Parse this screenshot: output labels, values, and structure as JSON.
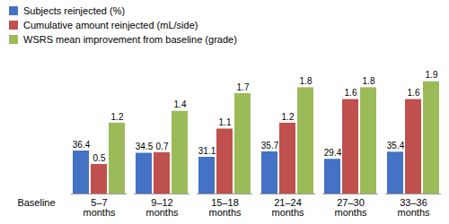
{
  "chart_data": {
    "type": "bar",
    "categories": [
      "Baseline",
      "5–7 months",
      "9–12 months",
      "15–18 months",
      "21–24 months",
      "27–30 months",
      "33–36 months"
    ],
    "series": [
      {
        "name": "Subjects reinjected (%)",
        "color": "#4472c4",
        "values": [
          null,
          36.4,
          34.5,
          31.1,
          35.7,
          29.4,
          35.4
        ]
      },
      {
        "name": "Cumulative amount reinjected (mL/side)",
        "color": "#c0504d",
        "axis": "y2",
        "values": [
          null,
          0.5,
          0.7,
          1.1,
          1.2,
          1.6,
          1.6
        ]
      },
      {
        "name": "WSRS mean improvement from baseline (grade)",
        "color": "#9bbb59",
        "axis": "y2",
        "values": [
          null,
          1.2,
          1.4,
          1.7,
          1.8,
          1.8,
          1.9
        ]
      }
    ],
    "ylim": [
      0,
      110
    ],
    "y2lim": [
      0,
      2.2
    ],
    "data_labels": true,
    "tick_labels": "x",
    "legend": "top-left"
  }
}
